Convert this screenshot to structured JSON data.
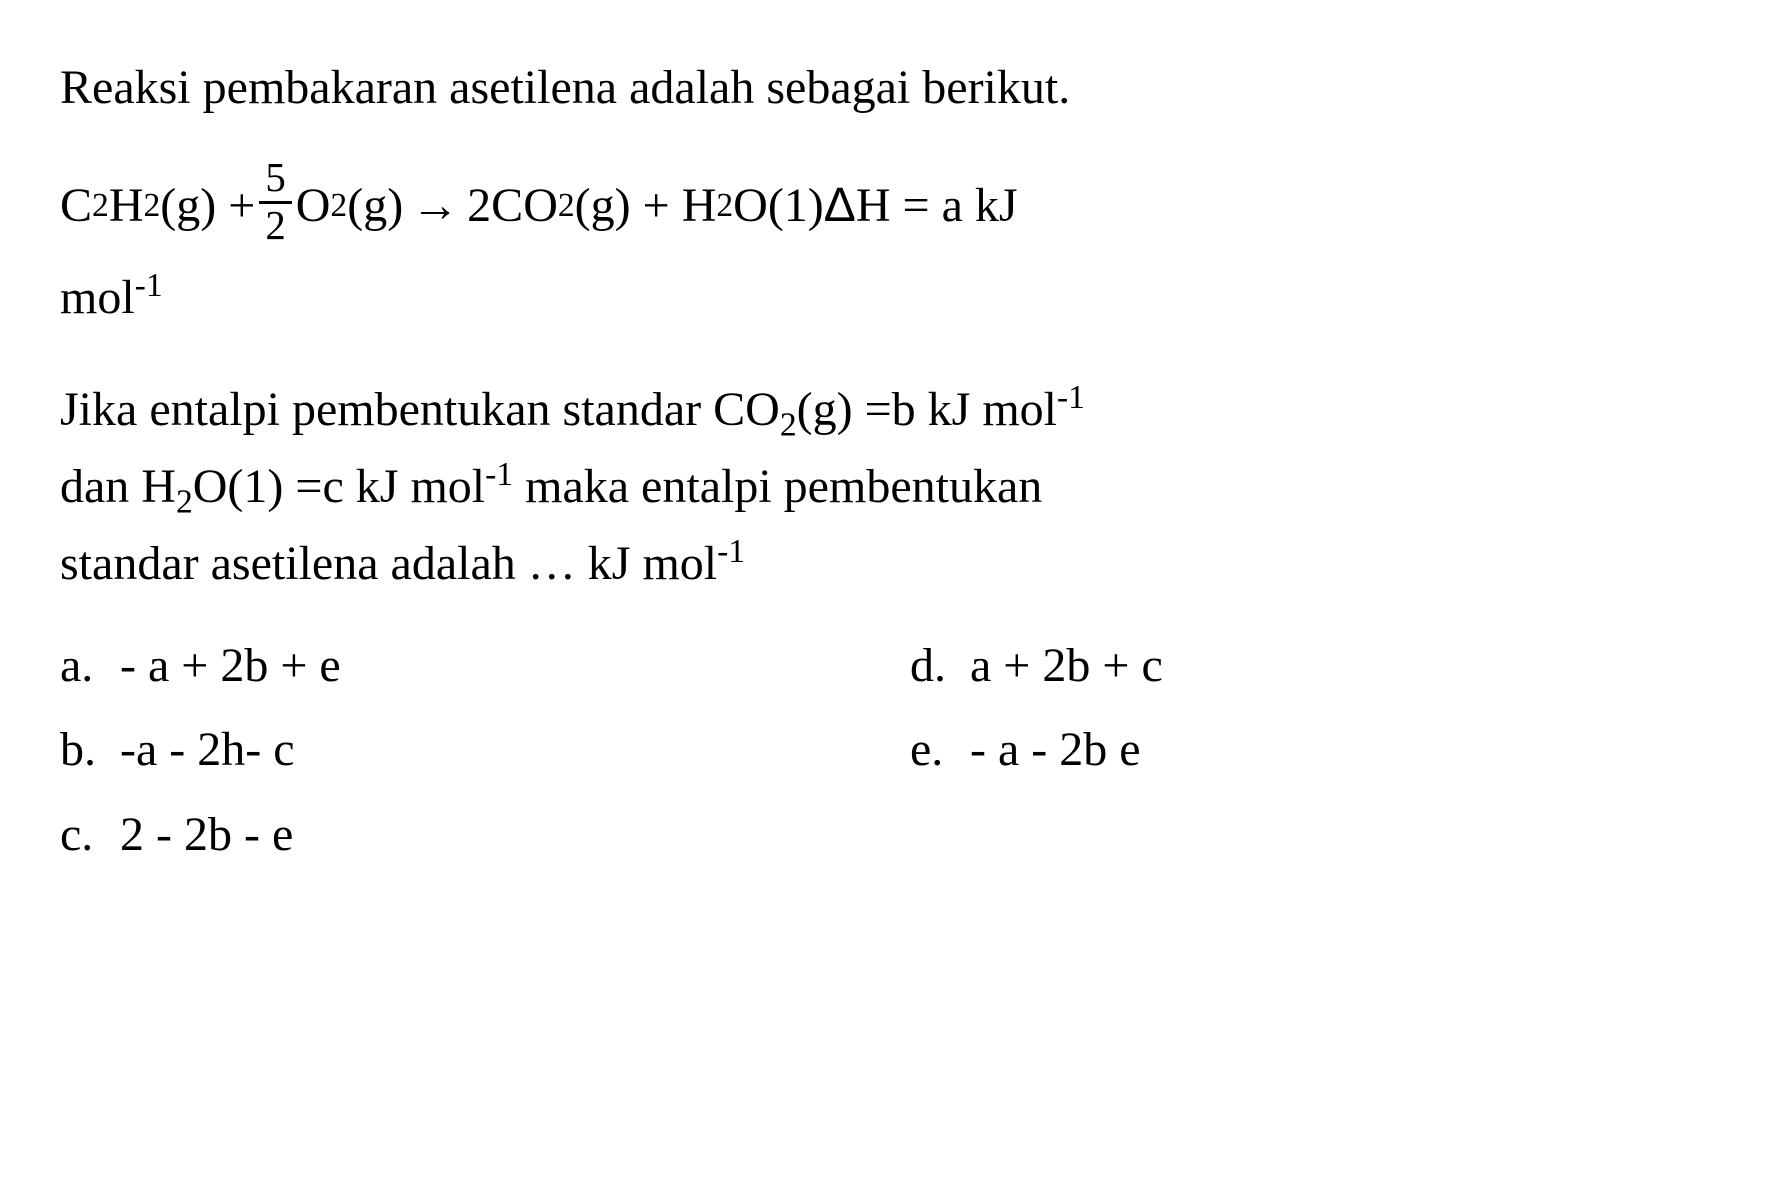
{
  "intro_text": "Reaksi pembakaran asetilena adalah sebagai berikut.",
  "equation": {
    "c2h2": "C",
    "c2h2_sub1": "2",
    "c2h2_h": "H",
    "c2h2_sub2": "2",
    "c2h2_state": "(g) + ",
    "frac_num": "5",
    "frac_den": "2",
    "o2": "O",
    "o2_sub": "2",
    "o2_state": "(g) ",
    "arrow": "→",
    "co2_coef": " 2CO",
    "co2_sub": "2",
    "co2_state": "(g) + H",
    "h2o_sub": "2",
    "h2o_rest": "O(1) ",
    "delta": "Δ",
    "dh_rest": "H = a kJ",
    "unit": "mol",
    "unit_sup": "-1"
  },
  "question": {
    "line1_pre": "Jika entalpi pembentukan standar CO",
    "line1_sub1": "2",
    "line1_mid": "(g) =b kJ mol",
    "line1_sup": "-1",
    "line2_pre": "dan H",
    "line2_sub": "2",
    "line2_mid": "O(1) =c kJ mol",
    "line2_sup": "-1",
    "line2_end": " maka entalpi pembentukan",
    "line3_pre": "standar asetilena adalah … kJ mol",
    "line3_sup": "-1"
  },
  "options": {
    "a": {
      "label": "a.",
      "text": "- a + 2b + e"
    },
    "b": {
      "label": "b.",
      "text": "-a - 2h- c"
    },
    "c": {
      "label": "c.",
      "text": "2 - 2b - e"
    },
    "d": {
      "label": "d.",
      "text": "a + 2b + c"
    },
    "e": {
      "label": "e.",
      "text": "- a - 2b e"
    }
  },
  "colors": {
    "text": "#000000",
    "background": "#ffffff"
  },
  "typography": {
    "font_family": "Times New Roman",
    "base_fontsize_pt": 36
  }
}
